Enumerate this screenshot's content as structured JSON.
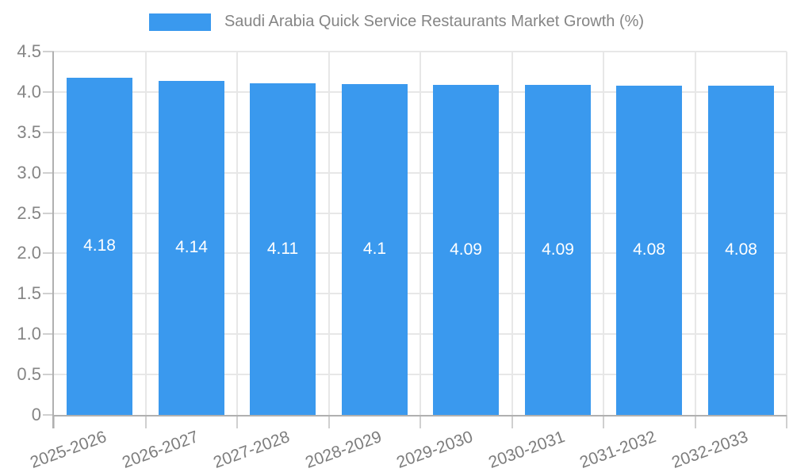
{
  "chart_data": {
    "type": "bar",
    "title": "Saudi Arabia Quick Service Restaurants Market Growth (%)",
    "legend": {
      "position": "top",
      "entries": [
        "Saudi Arabia Quick Service Restaurants Market Growth (%)"
      ]
    },
    "categories": [
      "2025-2026",
      "2026-2027",
      "2027-2028",
      "2028-2029",
      "2029-2030",
      "2030-2031",
      "2031-2032",
      "2032-2033"
    ],
    "values": [
      4.18,
      4.14,
      4.11,
      4.1,
      4.09,
      4.09,
      4.08,
      4.08
    ],
    "value_labels": [
      "4.18",
      "4.14",
      "4.11",
      "4.1",
      "4.09",
      "4.09",
      "4.08",
      "4.08"
    ],
    "xlabel": "",
    "ylabel": "",
    "ylim": [
      0,
      4.5
    ],
    "ytick_step": 0.5,
    "ytick_labels": [
      "0",
      "0.5",
      "1.0",
      "1.5",
      "2.0",
      "2.5",
      "3.0",
      "3.5",
      "4.0",
      "4.5"
    ],
    "grid": true,
    "colors": {
      "bar": "#3a99ee",
      "grid": "#e7e7e7",
      "axis": "#b0b0b0",
      "tick": "#d0d0d0",
      "tick_label": "#858585",
      "x_label": "#7d7d7d",
      "value_label": "#ffffff",
      "legend_text": "#858585"
    }
  }
}
